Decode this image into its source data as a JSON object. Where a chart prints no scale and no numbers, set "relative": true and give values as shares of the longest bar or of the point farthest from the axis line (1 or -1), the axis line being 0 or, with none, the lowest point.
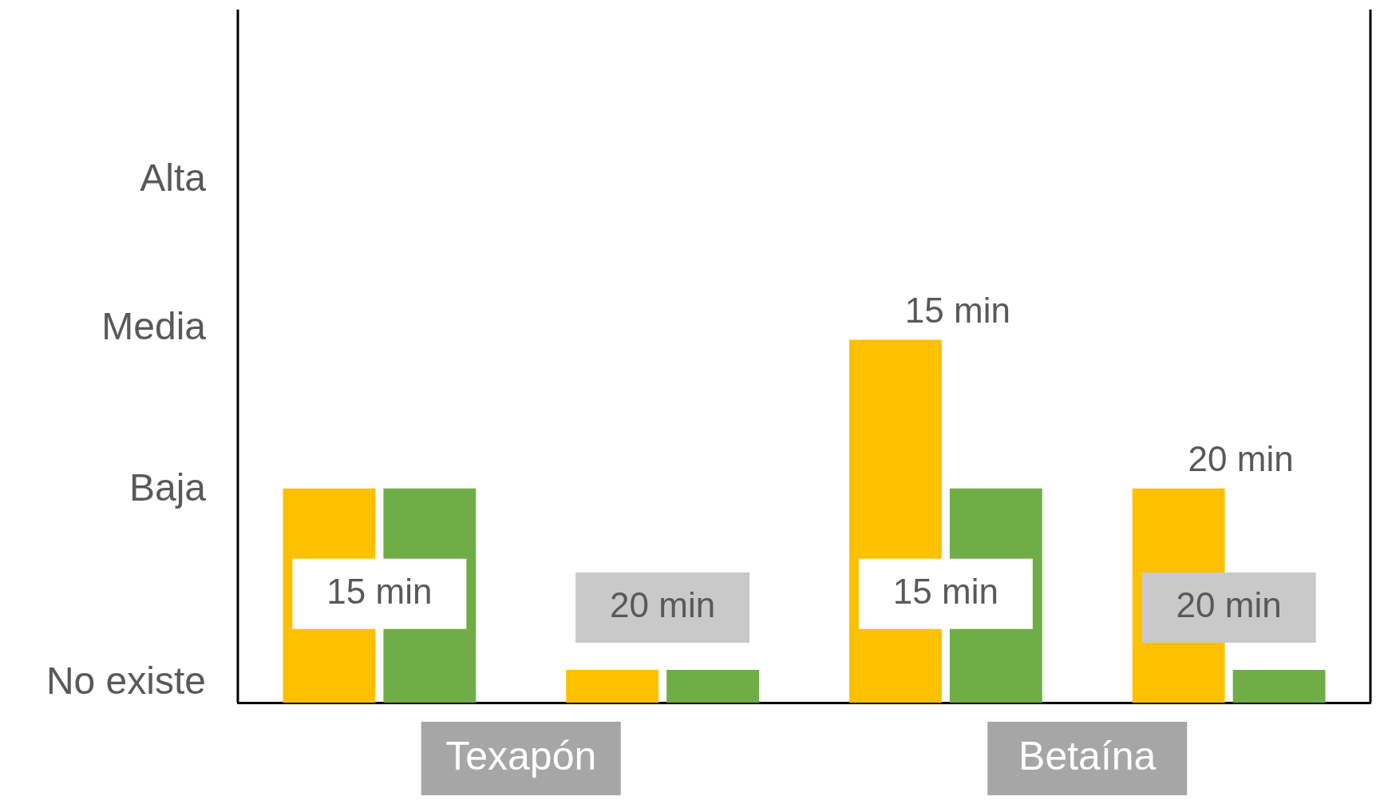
{
  "chart_data": {
    "type": "bar",
    "relative": true,
    "categories": [
      "15 min",
      "20 min",
      "15 min",
      "20 min"
    ],
    "series": [
      {
        "color": "#ffc000",
        "values": [
          0.59,
          0.09,
          1,
          0.59
        ]
      },
      {
        "color": "#70ad47",
        "values": [
          0.59,
          0.09,
          0.59,
          0.09
        ]
      }
    ],
    "annotations": [
      "Texapón",
      "Betaína",
      "15 min",
      "20 min",
      "No existe",
      "Baja",
      "Media",
      "Alta"
    ]
  }
}
